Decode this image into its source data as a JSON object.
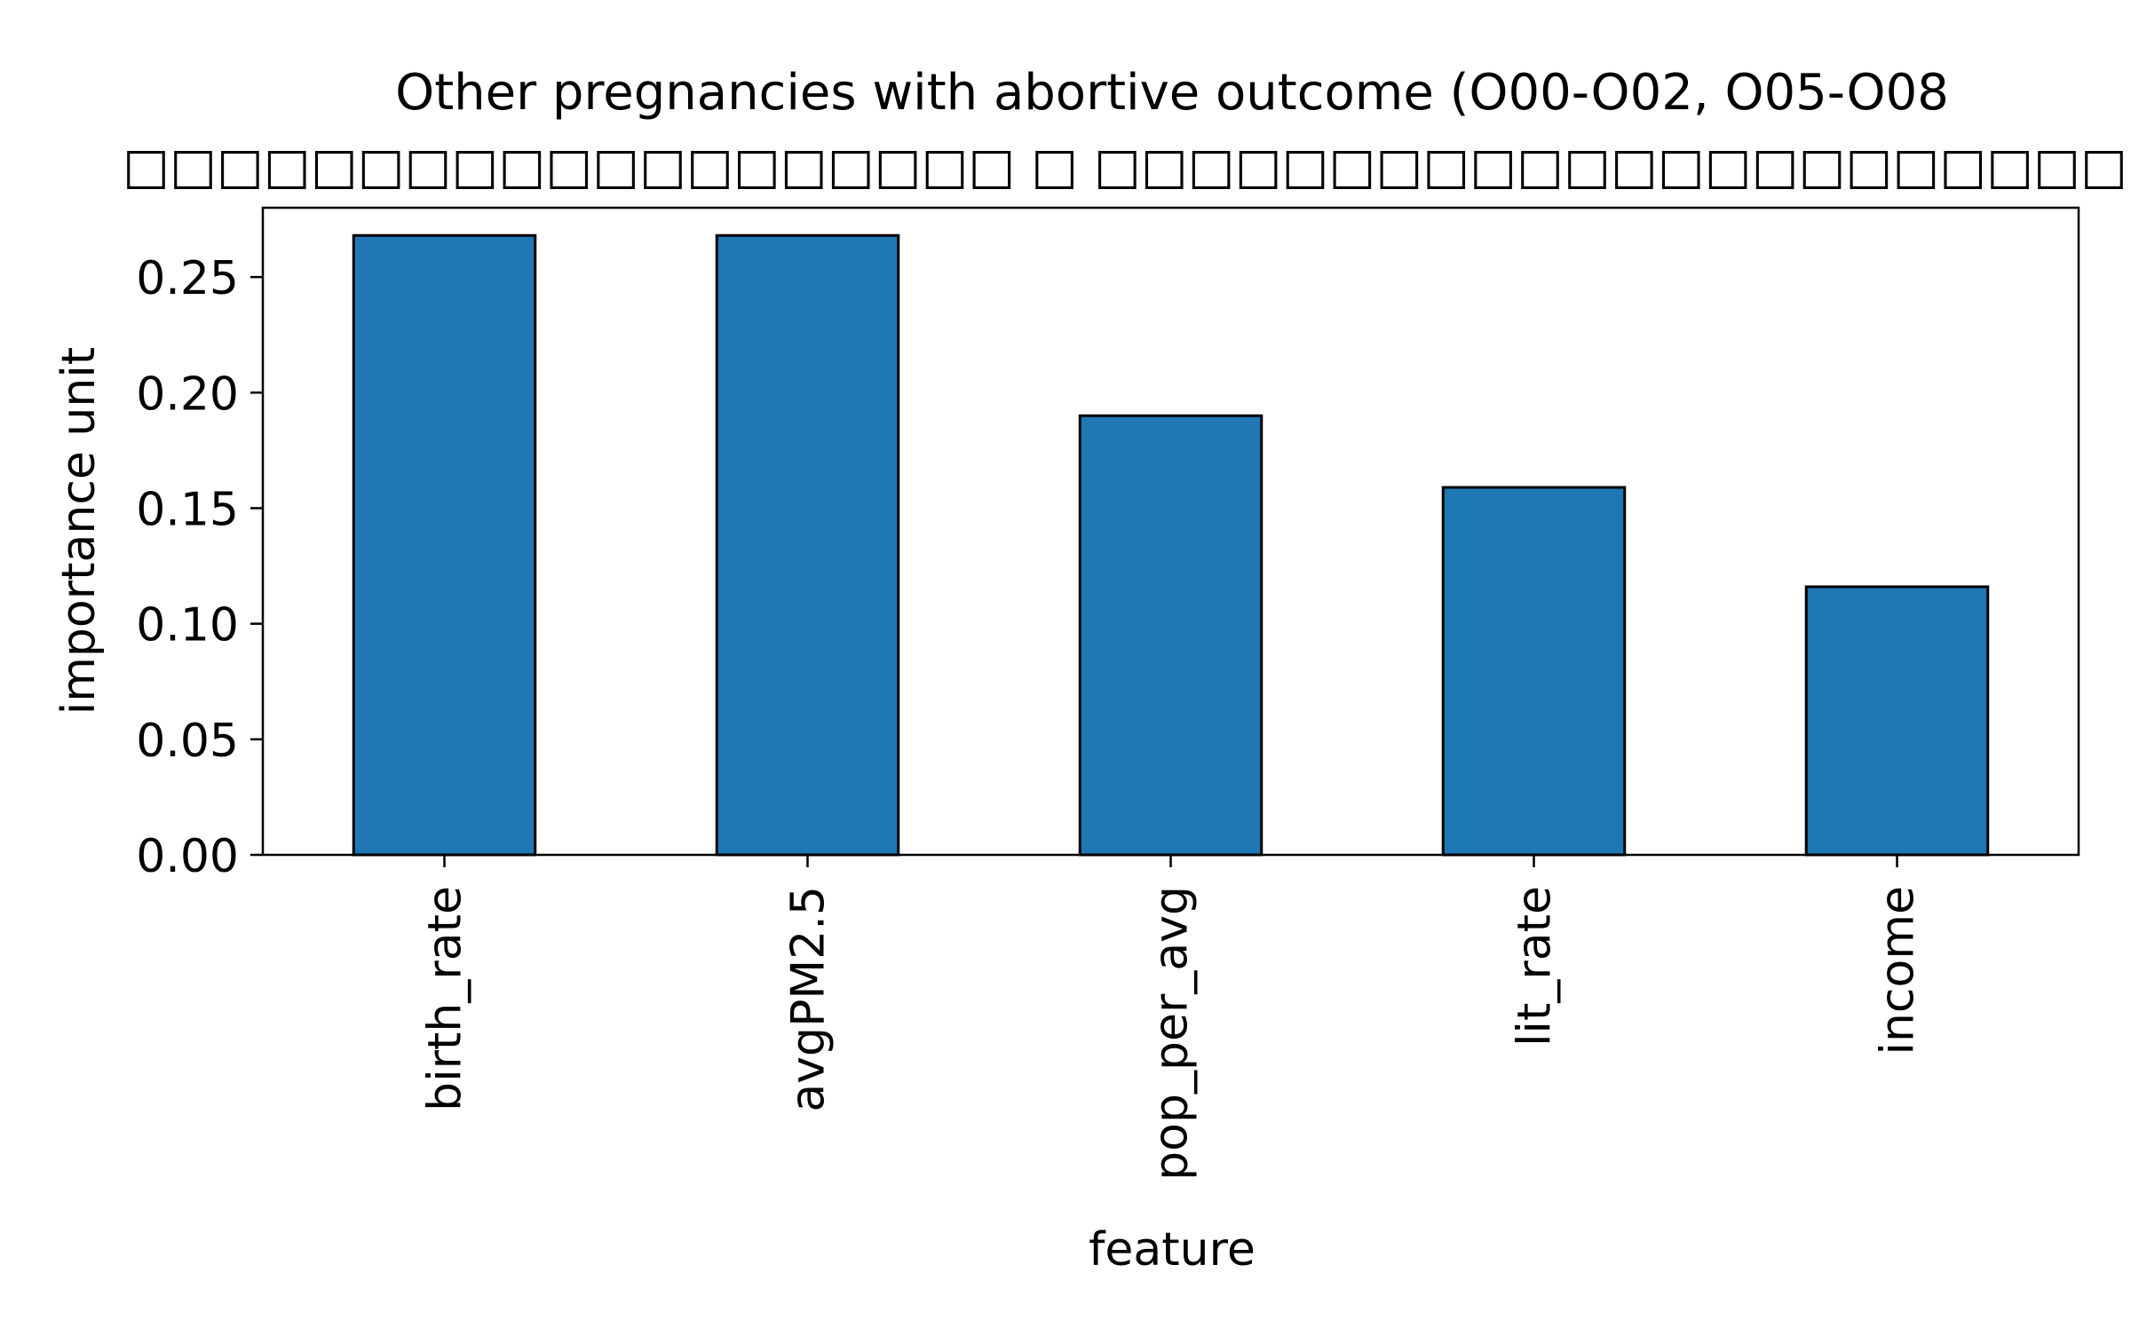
{
  "chart_data": {
    "type": "bar",
    "title": "Other pregnancies with abortive outcome (O00-O02, O05-O08",
    "subtitle": "□□□□□□□□□□□□□□□□□□□ □ □□□□□□□□□□□□□□□□□□□□□□□□",
    "xlabel": "feature",
    "ylabel": "importance unit",
    "categories": [
      "birth_rate",
      "avgPM2.5",
      "pop_per_avg",
      "lit_rate",
      "income"
    ],
    "values": [
      0.268,
      0.268,
      0.19,
      0.159,
      0.116
    ],
    "ylim": [
      0,
      0.28
    ],
    "yticks": [
      0.0,
      0.05,
      0.1,
      0.15,
      0.2,
      0.25
    ],
    "ytick_labels": [
      "0.00",
      "0.05",
      "0.10",
      "0.15",
      "0.20",
      "0.25"
    ],
    "grid": false,
    "legend": "none",
    "bar_color": "#1f77b4",
    "edge_color": "#000000"
  }
}
